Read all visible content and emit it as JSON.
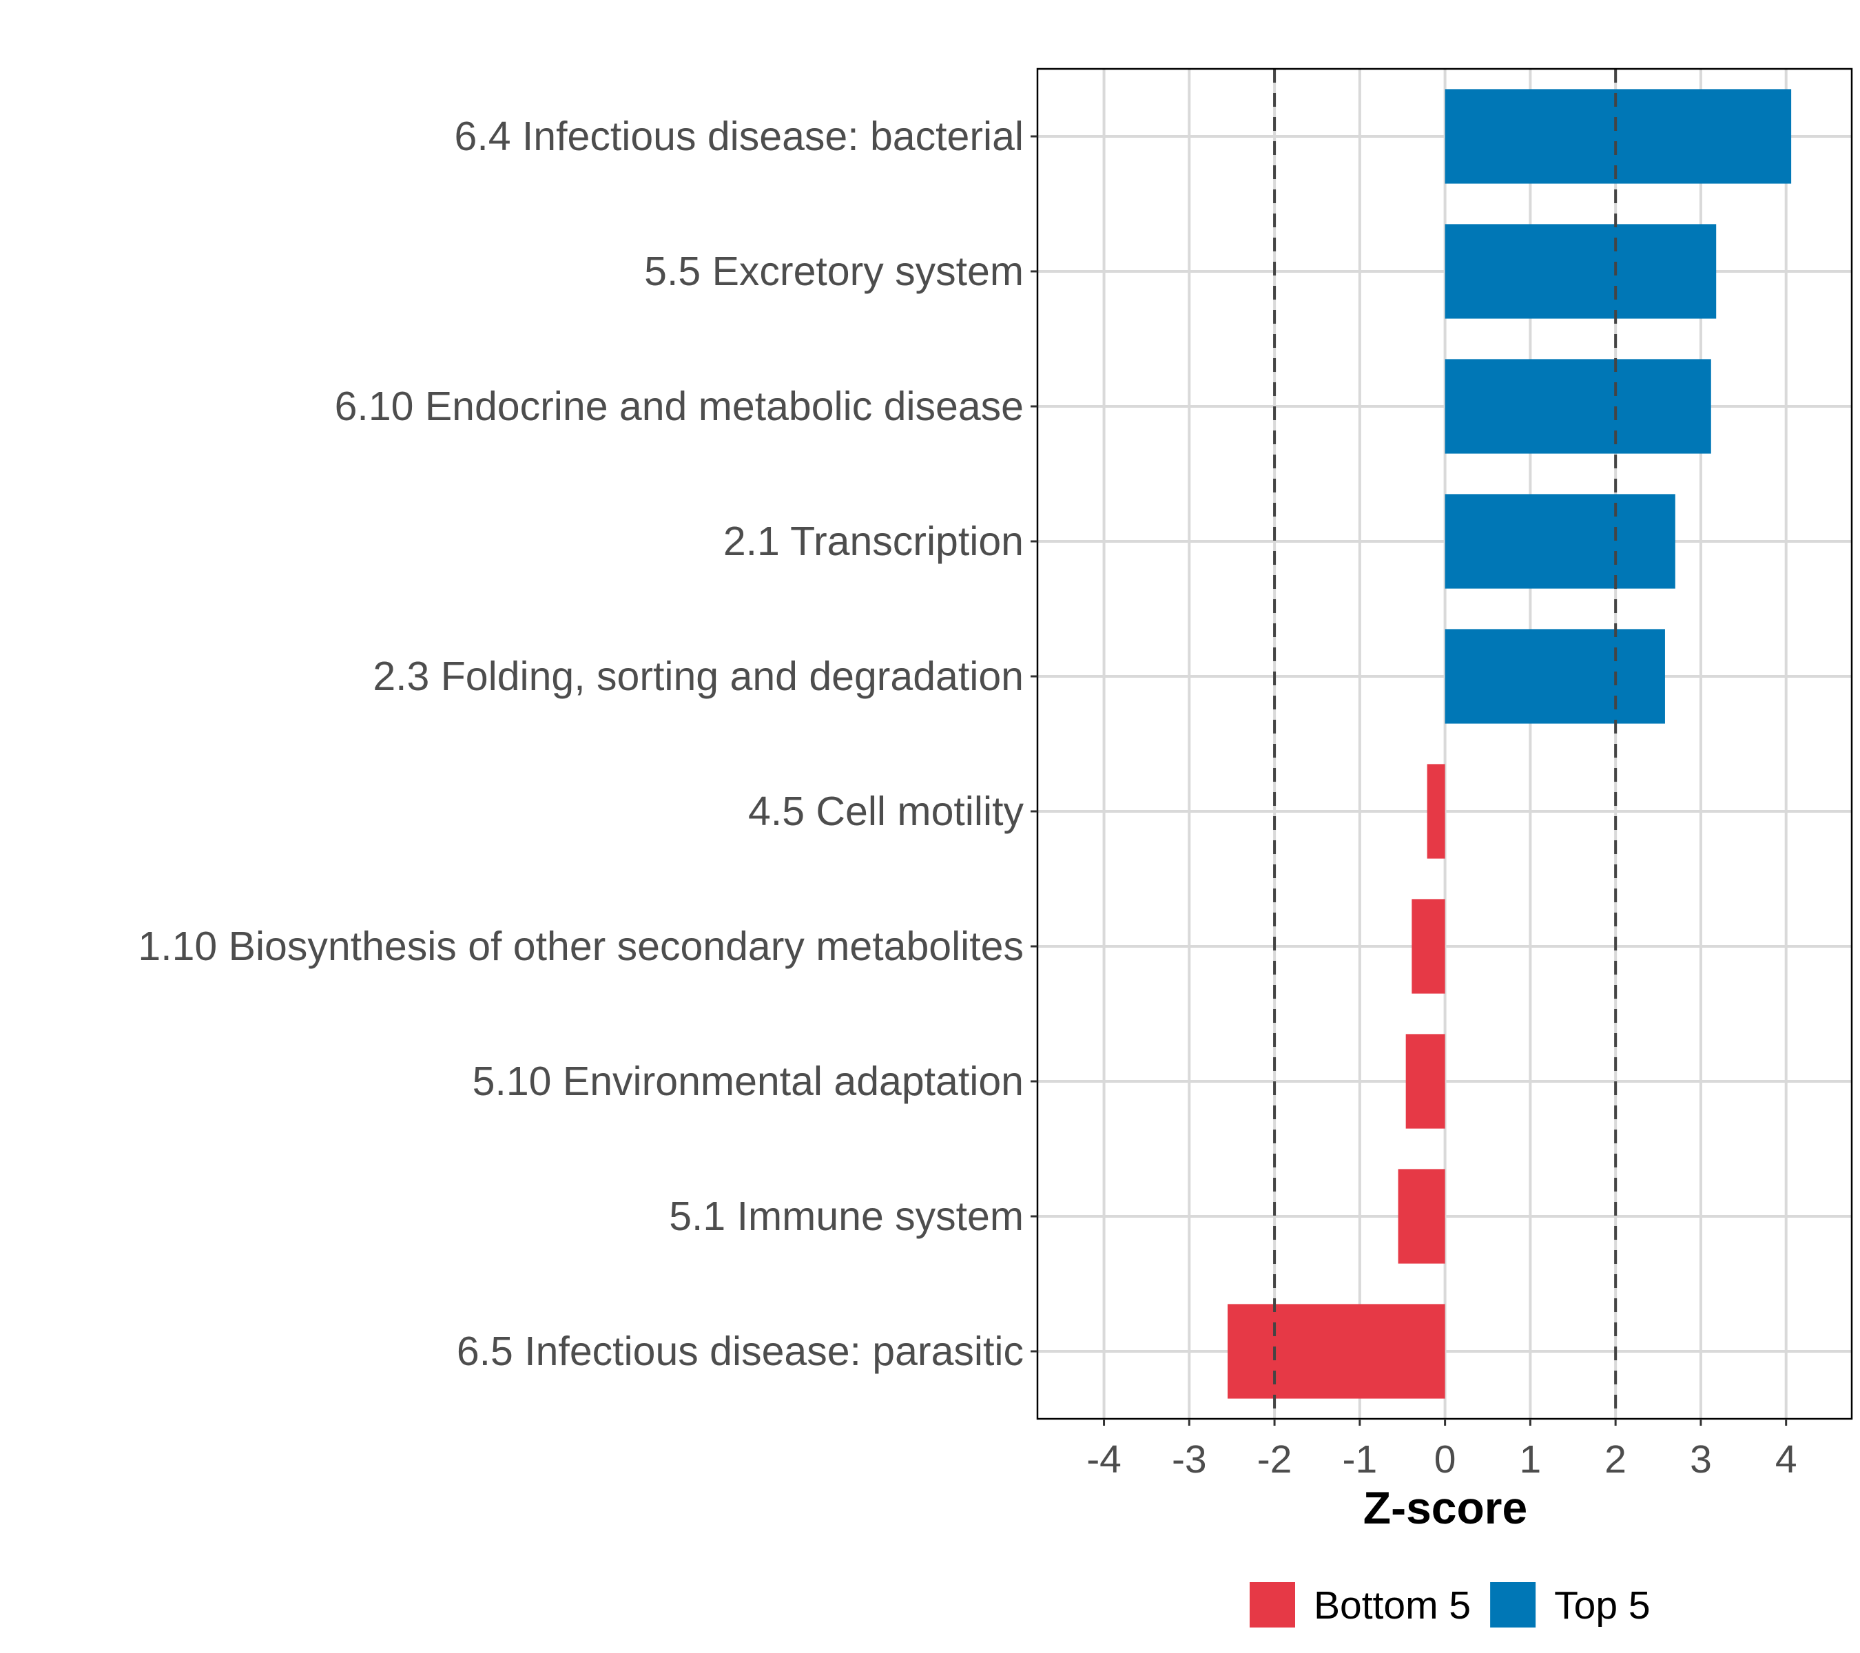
{
  "chart_data": {
    "type": "bar",
    "orientation": "horizontal",
    "title": "",
    "xlabel": "Z-score",
    "ylabel": "",
    "xlim": [
      -4.78,
      4.77
    ],
    "xticks": [
      -4,
      -3,
      -2,
      -1,
      0,
      1,
      2,
      3,
      4
    ],
    "reference_lines": [
      -2,
      2
    ],
    "grid": true,
    "legend_position": "bottom",
    "categories": [
      "6.4 Infectious disease: bacterial",
      "5.5 Excretory system",
      "6.10 Endocrine and metabolic disease",
      "2.1 Transcription",
      "2.3 Folding, sorting and degradation",
      "4.5 Cell motility",
      "1.10 Biosynthesis of other secondary metabolites",
      "5.10 Environmental adaptation",
      "5.1 Immune system",
      "6.5 Infectious disease: parasitic"
    ],
    "values": [
      4.06,
      3.18,
      3.12,
      2.7,
      2.58,
      -0.21,
      -0.39,
      -0.46,
      -0.55,
      -2.55
    ],
    "groups": [
      "Top 5",
      "Top 5",
      "Top 5",
      "Top 5",
      "Top 5",
      "Bottom 5",
      "Bottom 5",
      "Bottom 5",
      "Bottom 5",
      "Bottom 5"
    ],
    "legend": [
      {
        "name": "Bottom 5",
        "color": "#E63946"
      },
      {
        "name": "Top 5",
        "color": "#0077B6"
      }
    ]
  }
}
